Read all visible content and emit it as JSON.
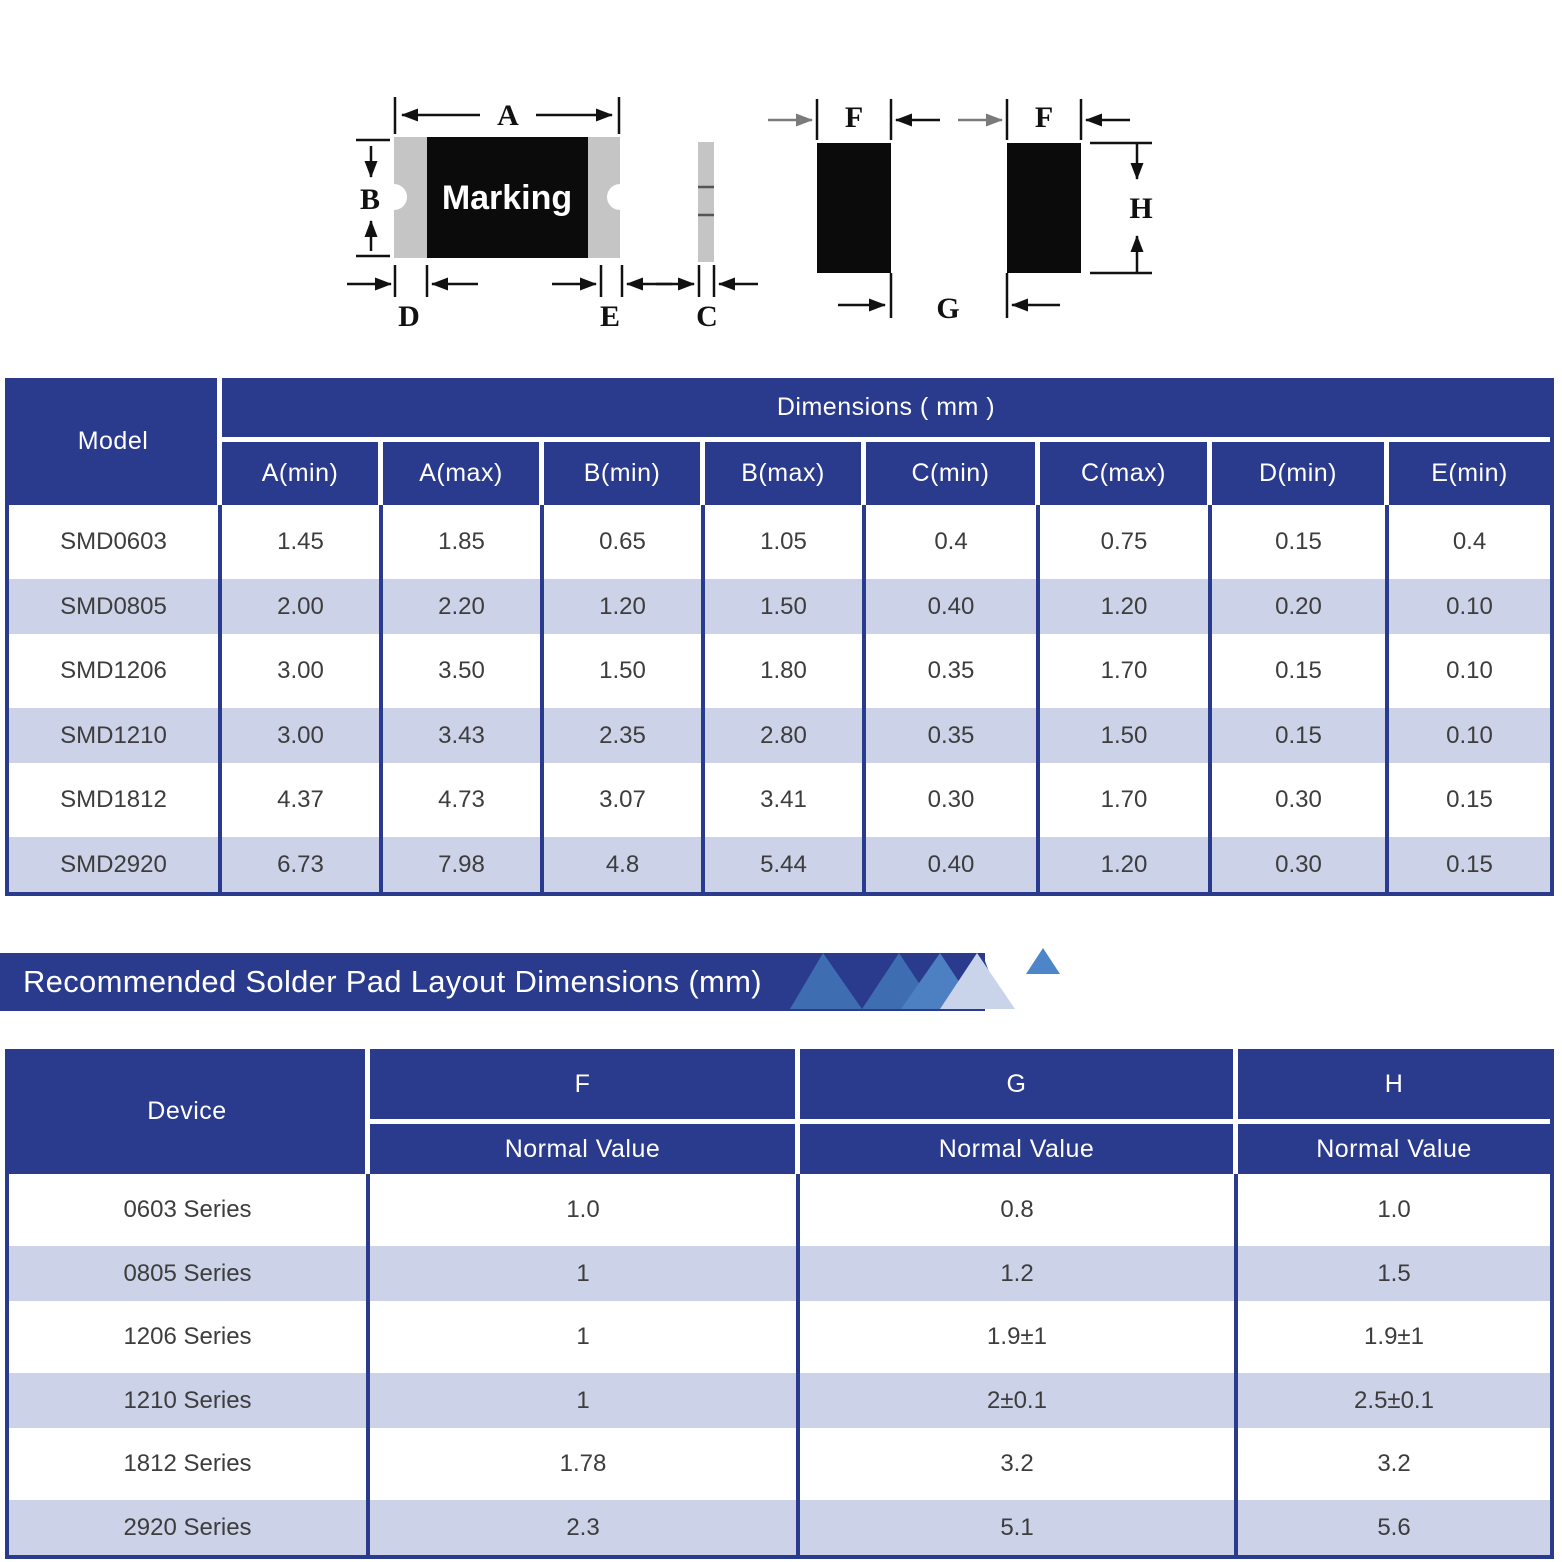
{
  "colors": {
    "navy": "#2a3a8c",
    "stripe_lavender": "#ccd2e7",
    "component_gray": "#c5c5c5",
    "component_black": "#0b0b0b",
    "tri_medium_blue": "#3e6db2",
    "tri_bright_blue": "#4d80c3",
    "tri_light_blue": "#c9d3ea",
    "tri_small_blue": "#4c86c9"
  },
  "diagram": {
    "marking": "Marking",
    "labels": {
      "a": "A",
      "b": "B",
      "c": "C",
      "d": "D",
      "e": "E",
      "f": "F",
      "g": "G",
      "h": "H"
    }
  },
  "table1": {
    "header": {
      "model": "Model",
      "dimensions": "Dimensions ( mm )",
      "columns": [
        "A(min)",
        "A(max)",
        "B(min)",
        "B(max)",
        "C(min)",
        "C(max)",
        "D(min)",
        "E(min)"
      ]
    },
    "rows": [
      {
        "model": "SMD0603",
        "values": [
          "1.45",
          "1.85",
          "0.65",
          "1.05",
          "0.4",
          "0.75",
          "0.15",
          "0.4"
        ]
      },
      {
        "model": "SMD0805",
        "values": [
          "2.00",
          "2.20",
          "1.20",
          "1.50",
          "0.40",
          "1.20",
          "0.20",
          "0.10"
        ]
      },
      {
        "model": "SMD1206",
        "values": [
          "3.00",
          "3.50",
          "1.50",
          "1.80",
          "0.35",
          "1.70",
          "0.15",
          "0.10"
        ]
      },
      {
        "model": "SMD1210",
        "values": [
          "3.00",
          "3.43",
          "2.35",
          "2.80",
          "0.35",
          "1.50",
          "0.15",
          "0.10"
        ]
      },
      {
        "model": "SMD1812",
        "values": [
          "4.37",
          "4.73",
          "3.07",
          "3.41",
          "0.30",
          "1.70",
          "0.30",
          "0.15"
        ]
      },
      {
        "model": "SMD2920",
        "values": [
          "6.73",
          "7.98",
          "4.8",
          "5.44",
          "0.40",
          "1.20",
          "0.30",
          "0.15"
        ]
      }
    ]
  },
  "banner": {
    "title": "Recommended Solder Pad Layout Dimensions (mm)"
  },
  "table2": {
    "header": {
      "device": "Device",
      "columns": [
        "F",
        "G",
        "H"
      ],
      "sub": "Normal Value"
    },
    "rows": [
      {
        "device": "0603 Series",
        "values": [
          "1.0",
          "0.8",
          "1.0"
        ]
      },
      {
        "device": "0805 Series",
        "values": [
          "1",
          "1.2",
          "1.5"
        ]
      },
      {
        "device": "1206 Series",
        "values": [
          "1",
          "1.9±1",
          "1.9±1"
        ]
      },
      {
        "device": "1210 Series",
        "values": [
          "1",
          "2±0.1",
          "2.5±0.1"
        ]
      },
      {
        "device": "1812 Series",
        "values": [
          "1.78",
          "3.2",
          "3.2"
        ]
      },
      {
        "device": "2920 Series",
        "values": [
          "2.3",
          "5.1",
          "5.6"
        ]
      }
    ]
  }
}
